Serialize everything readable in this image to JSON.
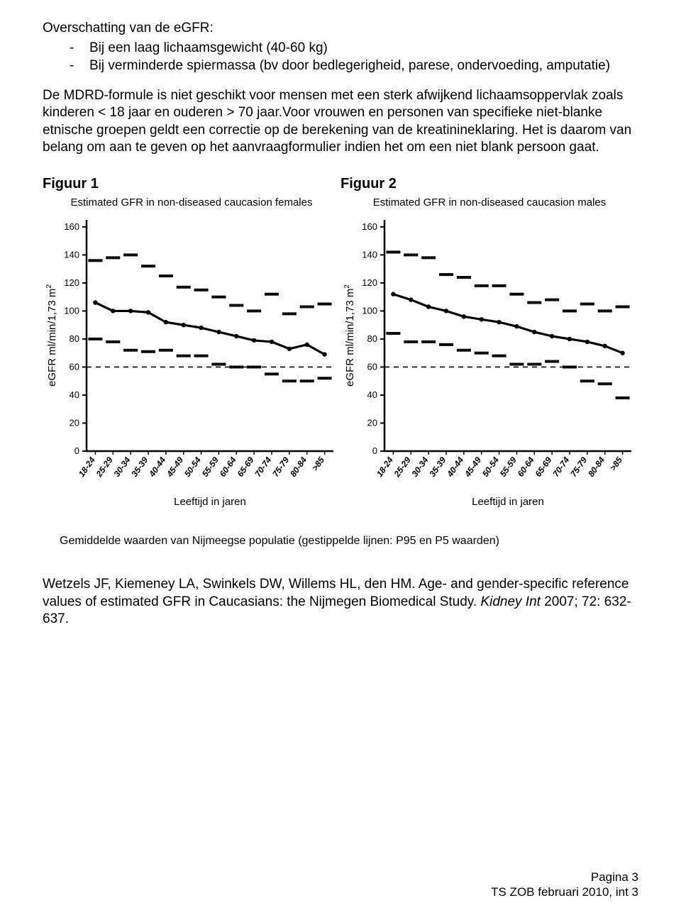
{
  "text": {
    "heading": "Overschatting van de eGFR:",
    "bullet1": "Bij een laag lichaamsgewicht (40-60 kg)",
    "bullet2": "Bij verminderde spiermassa (bv door bedlegerigheid, parese, ondervoeding, amputatie)",
    "para": "De MDRD-formule is niet geschikt voor mensen met een sterk afwijkend lichaamsoppervlak zoals kinderen < 18 jaar en ouderen > 70 jaar.Voor vrouwen en personen van specifieke niet-blanke etnische groepen geldt een correctie op de berekening van de kreatinineklaring. Het is daarom van belang om aan te geven op het aanvraagformulier indien het om een niet blank persoon gaat.",
    "fig1_label": "Figuur 1",
    "fig2_label": "Figuur 2",
    "caption": "Gemiddelde waarden van Nijmeegse populatie  (gestippelde lijnen: P95 en P5 waarden)",
    "ref_authors": "Wetzels JF, Kiemeney LA, Swinkels DW, Willems HL, den HM. Age- and gender-specific reference values of estimated GFR in Caucasians: the Nijmegen Biomedical Study. ",
    "ref_italic": "Kidney Int ",
    "ref_tail": "2007; 72: 632-637.",
    "footer_line1": "Pagina 3",
    "footer_line2": "TS ZOB februari 2010, int 3"
  },
  "charts": {
    "common": {
      "y_label": "eGFR ml/min/1,73 m",
      "y_label_sup": "2",
      "x_label": "Leeftijd in jaren",
      "y_ticks": [
        0,
        20,
        40,
        60,
        80,
        100,
        120,
        140,
        160
      ],
      "x_categories": [
        "18-24",
        "25-29",
        "30-34",
        "35-39",
        "40-44",
        "45-49",
        "50-54",
        "55-59",
        "60-64",
        "65-69",
        "70-74",
        "75-79",
        "80-84",
        ">85"
      ],
      "ylim": [
        0,
        165
      ],
      "ref_line_y": 60,
      "colors": {
        "axis": "#000000",
        "tick": "#000000",
        "text": "#000000",
        "mean_line": "#000000",
        "dotted_line": "#000000",
        "ref_line": "#000000",
        "background": "#ffffff"
      },
      "axis_stroke_width": 2.5,
      "mean_stroke_width": 3.2,
      "dotted_stroke_width": 2,
      "marker_radius": 3.2,
      "dotted_marker_size": 4,
      "title_fontsize": 15,
      "tick_fontsize": 13,
      "axis_label_fontsize": 15
    },
    "fig1": {
      "title": "Estimated GFR in non-diseased caucasion females",
      "p95": [
        136,
        138,
        140,
        132,
        125,
        117,
        115,
        110,
        104,
        100,
        112,
        98,
        103,
        105
      ],
      "mean": [
        106,
        100,
        100,
        99,
        92,
        90,
        88,
        85,
        82,
        79,
        78,
        73,
        76,
        69
      ],
      "p5": [
        80,
        78,
        72,
        71,
        72,
        68,
        68,
        62,
        60,
        60,
        55,
        50,
        50,
        52
      ]
    },
    "fig2": {
      "title": "Estimated GFR in non-diseased caucasion males",
      "p95": [
        142,
        140,
        138,
        126,
        124,
        118,
        118,
        112,
        106,
        108,
        100,
        105,
        100,
        103
      ],
      "mean": [
        112,
        108,
        103,
        100,
        96,
        94,
        92,
        89,
        85,
        82,
        80,
        78,
        75,
        70
      ],
      "p5": [
        84,
        78,
        78,
        76,
        72,
        70,
        68,
        62,
        62,
        64,
        60,
        50,
        48,
        38
      ]
    }
  }
}
